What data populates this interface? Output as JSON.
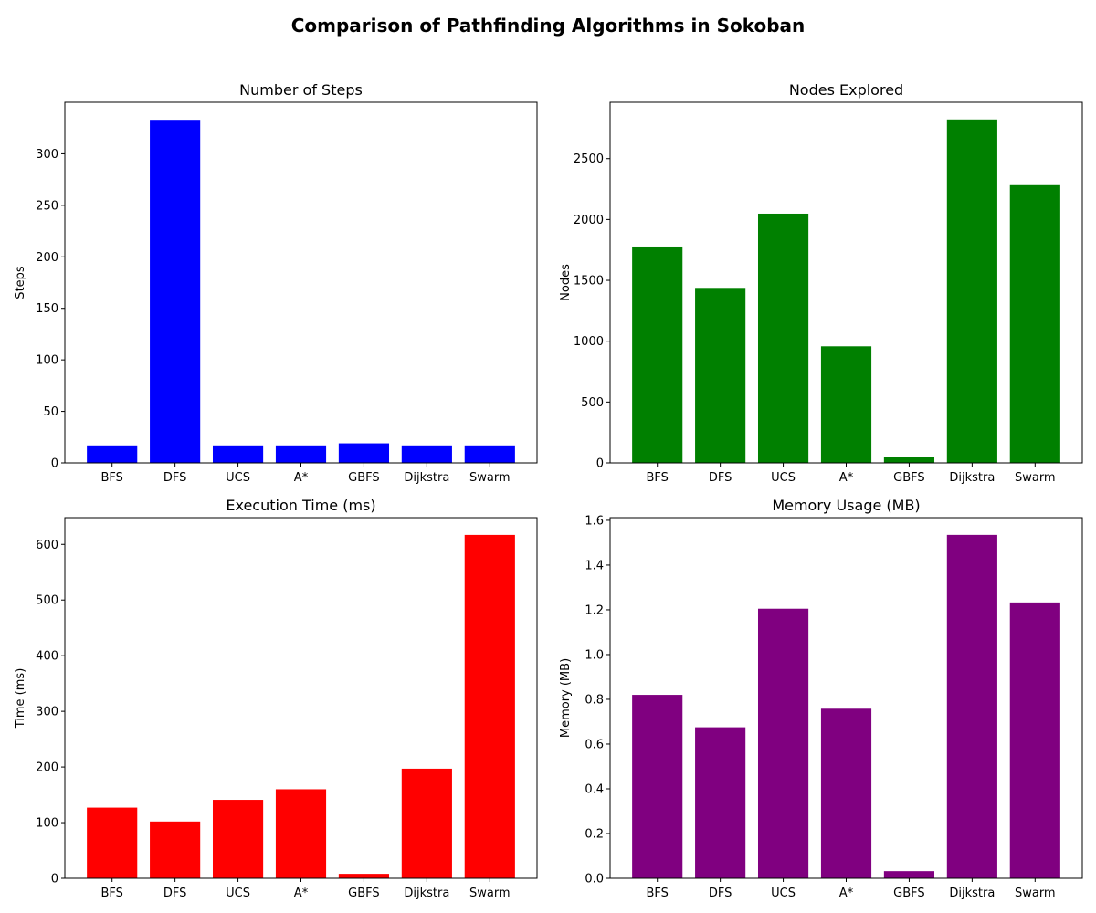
{
  "figure": {
    "title": "Comparison of Pathfinding Algorithms in Sokoban"
  },
  "chart_data": [
    {
      "type": "bar",
      "title": "Number of Steps",
      "xlabel": "",
      "ylabel": "Steps",
      "categories": [
        "BFS",
        "DFS",
        "UCS",
        "A*",
        "GBFS",
        "Dijkstra",
        "Swarm"
      ],
      "values": [
        17,
        333,
        17,
        17,
        19,
        17,
        17
      ],
      "ylim": [
        0,
        350
      ],
      "yticks": [
        0,
        50,
        100,
        150,
        200,
        250,
        300
      ],
      "color": "#0000ff",
      "grid": false
    },
    {
      "type": "bar",
      "title": "Nodes Explored",
      "xlabel": "",
      "ylabel": "Nodes",
      "categories": [
        "BFS",
        "DFS",
        "UCS",
        "A*",
        "GBFS",
        "Dijkstra",
        "Swarm"
      ],
      "values": [
        1778,
        1438,
        2048,
        958,
        45,
        2822,
        2282
      ],
      "ylim": [
        0,
        2963
      ],
      "yticks": [
        0,
        500,
        1000,
        1500,
        2000,
        2500
      ],
      "color": "#008000",
      "grid": false
    },
    {
      "type": "bar",
      "title": "Execution Time (ms)",
      "xlabel": "",
      "ylabel": "Time (ms)",
      "categories": [
        "BFS",
        "DFS",
        "UCS",
        "A*",
        "GBFS",
        "Dijkstra",
        "Swarm"
      ],
      "values": [
        127,
        102,
        141,
        160,
        8,
        197,
        617
      ],
      "ylim": [
        0,
        648
      ],
      "yticks": [
        0,
        100,
        200,
        300,
        400,
        500,
        600
      ],
      "color": "#ff0000",
      "grid": false
    },
    {
      "type": "bar",
      "title": "Memory Usage (MB)",
      "xlabel": "",
      "ylabel": "Memory (MB)",
      "categories": [
        "BFS",
        "DFS",
        "UCS",
        "A*",
        "GBFS",
        "Dijkstra",
        "Swarm"
      ],
      "values": [
        0.82,
        0.675,
        1.205,
        0.758,
        0.032,
        1.535,
        1.233
      ],
      "ylim": [
        0,
        1.612
      ],
      "yticks": [
        0.0,
        0.2,
        0.4,
        0.6,
        0.8,
        1.0,
        1.2,
        1.4,
        1.6
      ],
      "ytick_decimals": 1,
      "color": "#800080",
      "grid": false
    }
  ]
}
